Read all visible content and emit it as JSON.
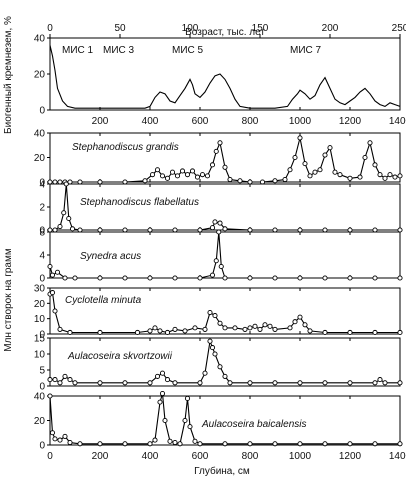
{
  "chart_data": [
    {
      "type": "line",
      "top_axis": {
        "label": "Возраст, тыс. лет",
        "range": [
          0,
          250
        ],
        "ticks": [
          "0",
          "50",
          "100",
          "150",
          "200",
          "250"
        ]
      },
      "bottom_axis": {
        "range": [
          0,
          1400
        ],
        "ticks": [
          "200",
          "400",
          "600",
          "800",
          "1000",
          "1200",
          "1400"
        ]
      },
      "ylabel": "Биогенный кремнезем, %",
      "ylim": [
        0,
        40
      ],
      "y_ticks": [
        "0",
        "20",
        "40"
      ],
      "annotations": [
        "МИС 1",
        "МИС 3",
        "МИС 5",
        "МИС 7"
      ],
      "series": [
        {
          "x": [
            0,
            10,
            20,
            30,
            50,
            70,
            100,
            150,
            200,
            250,
            300,
            350,
            380,
            400,
            420,
            440,
            460,
            480,
            500,
            520,
            540,
            560,
            570,
            580,
            600,
            620,
            640,
            660,
            680,
            700,
            720,
            740,
            760,
            800,
            850,
            900,
            950,
            970,
            990,
            1000,
            1020,
            1040,
            1060,
            1080,
            1100,
            1120,
            1140,
            1160,
            1180,
            1200,
            1220,
            1240,
            1260,
            1280,
            1300,
            1320,
            1340,
            1360,
            1380,
            1400
          ],
          "values": [
            36,
            30,
            22,
            12,
            5,
            2,
            1,
            1,
            1,
            1,
            1,
            1,
            1,
            2,
            7,
            10,
            9,
            5,
            4,
            8,
            12,
            17,
            14,
            9,
            7,
            10,
            15,
            19,
            20,
            17,
            12,
            6,
            2,
            1,
            1,
            1,
            2,
            6,
            9,
            11,
            9,
            6,
            8,
            14,
            18,
            12,
            6,
            4,
            3,
            5,
            7,
            10,
            12,
            9,
            5,
            3,
            2,
            4,
            3,
            2
          ]
        }
      ]
    },
    {
      "type": "line",
      "xlabel": "Глубина, см",
      "ylabel": "Млн створок на грамм",
      "x_range": [
        0,
        1400
      ],
      "x_ticks": [
        "0",
        "200",
        "400",
        "600",
        "800",
        "1000",
        "1200",
        "1400"
      ],
      "panels": [
        {
          "name": "Stephanodiscus grandis",
          "ylim": [
            0,
            40
          ],
          "y_ticks": [
            "0",
            "20",
            "40"
          ],
          "x": [
            0,
            20,
            40,
            60,
            80,
            120,
            200,
            300,
            380,
            410,
            430,
            450,
            470,
            490,
            510,
            530,
            550,
            570,
            590,
            610,
            630,
            650,
            665,
            680,
            700,
            720,
            760,
            800,
            850,
            900,
            940,
            960,
            980,
            1000,
            1020,
            1040,
            1060,
            1080,
            1100,
            1120,
            1140,
            1160,
            1200,
            1240,
            1260,
            1280,
            1300,
            1320,
            1340,
            1360,
            1380,
            1400
          ],
          "values": [
            0,
            0,
            0,
            0,
            0,
            0,
            0,
            0,
            1,
            6,
            10,
            5,
            3,
            8,
            5,
            9,
            6,
            9,
            4,
            6,
            5,
            14,
            25,
            32,
            12,
            2,
            1,
            0,
            0,
            1,
            2,
            10,
            20,
            36,
            15,
            5,
            8,
            10,
            22,
            28,
            8,
            6,
            3,
            4,
            20,
            32,
            14,
            6,
            3,
            6,
            4,
            5
          ]
        },
        {
          "name": "Stephanodiscus flabellatus",
          "ylim": [
            0,
            4
          ],
          "y_ticks": [
            "0",
            "2",
            "4"
          ],
          "x": [
            0,
            20,
            40,
            55,
            65,
            75,
            90,
            120,
            200,
            300,
            400,
            500,
            600,
            650,
            660,
            680,
            700,
            800,
            900,
            1000,
            1100,
            1200,
            1300,
            1400
          ],
          "values": [
            0,
            0,
            0.3,
            1.5,
            4,
            1,
            0.1,
            0,
            0,
            0,
            0,
            0,
            0,
            0.2,
            0.7,
            0.6,
            0.1,
            0,
            0,
            0,
            0,
            0,
            0,
            0
          ]
        },
        {
          "name": "Synedra acus",
          "ylim": [
            0,
            8
          ],
          "y_ticks": [
            "0",
            "4",
            "8"
          ],
          "x": [
            0,
            10,
            30,
            60,
            100,
            200,
            300,
            400,
            500,
            600,
            650,
            665,
            675,
            685,
            700,
            800,
            900,
            1000,
            1100,
            1200,
            1300,
            1400
          ],
          "values": [
            2,
            0.5,
            1,
            0,
            0,
            0,
            0,
            0,
            0,
            0,
            0.5,
            3,
            8,
            2,
            0,
            0,
            0,
            0,
            0,
            0,
            0,
            0
          ]
        },
        {
          "name": "Cyclotella minuta",
          "ylim": [
            0,
            30
          ],
          "y_ticks": [
            "0",
            "10",
            "20",
            "30"
          ],
          "x": [
            0,
            10,
            20,
            40,
            80,
            200,
            350,
            400,
            420,
            440,
            470,
            500,
            540,
            580,
            620,
            640,
            660,
            680,
            700,
            740,
            780,
            800,
            820,
            840,
            860,
            880,
            900,
            960,
            980,
            1000,
            1020,
            1040,
            1100,
            1200,
            1300,
            1400
          ],
          "values": [
            26,
            27,
            15,
            3,
            1,
            1,
            1,
            2,
            4,
            2,
            1,
            3,
            2,
            4,
            3,
            14,
            12,
            7,
            4,
            4,
            3,
            4,
            5,
            3,
            6,
            5,
            3,
            4,
            8,
            11,
            6,
            2,
            1,
            1,
            1,
            1
          ]
        },
        {
          "name": "Aulacoseira skvortzowii",
          "ylim": [
            0,
            15
          ],
          "y_ticks": [
            "0",
            "5",
            "10",
            "15"
          ],
          "x": [
            0,
            20,
            40,
            60,
            80,
            100,
            200,
            300,
            400,
            430,
            450,
            470,
            500,
            600,
            620,
            640,
            650,
            660,
            680,
            700,
            720,
            800,
            900,
            1000,
            1100,
            1200,
            1300,
            1320,
            1340,
            1400
          ],
          "values": [
            2,
            2,
            1,
            3,
            2,
            1,
            1,
            1,
            1,
            3,
            4,
            2,
            1,
            1,
            4,
            14,
            12,
            10,
            6,
            3,
            1,
            1,
            1,
            1,
            1,
            1,
            1,
            2,
            1,
            1
          ]
        },
        {
          "name": "Aulacoseira baicalensis",
          "ylim": [
            0,
            40
          ],
          "y_ticks": [
            "0",
            "20",
            "40"
          ],
          "x": [
            0,
            10,
            20,
            40,
            60,
            80,
            120,
            200,
            300,
            400,
            420,
            440,
            450,
            460,
            480,
            500,
            520,
            540,
            550,
            560,
            580,
            600,
            700,
            800,
            900,
            1000,
            1100,
            1200,
            1300,
            1400
          ],
          "values": [
            40,
            10,
            5,
            4,
            7,
            2,
            1,
            1,
            1,
            1,
            4,
            35,
            42,
            20,
            3,
            2,
            1,
            20,
            38,
            15,
            3,
            1,
            1,
            1,
            1,
            1,
            1,
            1,
            1,
            1
          ]
        }
      ]
    }
  ]
}
